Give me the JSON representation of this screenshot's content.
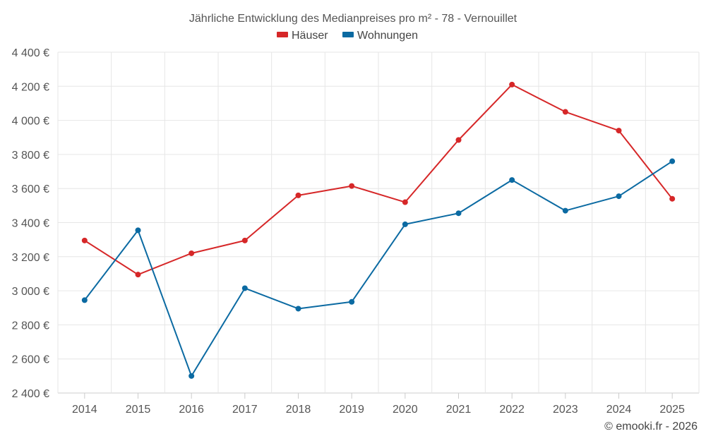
{
  "chart_data": {
    "type": "line",
    "title": "Jährliche Entwicklung des Medianpreises pro m² - 78 - Vernouillet",
    "categories": [
      "2014",
      "2015",
      "2016",
      "2017",
      "2018",
      "2019",
      "2020",
      "2021",
      "2022",
      "2023",
      "2024",
      "2025"
    ],
    "series": [
      {
        "name": "Häuser",
        "color": "#d62728",
        "values": [
          3295,
          3095,
          3220,
          3295,
          3560,
          3615,
          3520,
          3885,
          4210,
          4050,
          3940,
          3540
        ]
      },
      {
        "name": "Wohnungen",
        "color": "#0b6aa2",
        "values": [
          2945,
          3355,
          2500,
          3015,
          2895,
          2935,
          3390,
          3455,
          3650,
          3470,
          3555,
          3760
        ]
      }
    ],
    "ylim": [
      2400,
      4400
    ],
    "yticks": [
      2400,
      2600,
      2800,
      3000,
      3200,
      3400,
      3600,
      3800,
      4000,
      4200,
      4400
    ],
    "ytick_labels": [
      "2 400 €",
      "2 600 €",
      "2 800 €",
      "3 000 €",
      "3 200 €",
      "3 400 €",
      "3 600 €",
      "3 800 €",
      "4 000 €",
      "4 200 €",
      "4 400 €"
    ],
    "xlabel": "",
    "ylabel": "",
    "grid": true,
    "legend_position": "top-center"
  },
  "credit": "© emooki.fr - 2026"
}
